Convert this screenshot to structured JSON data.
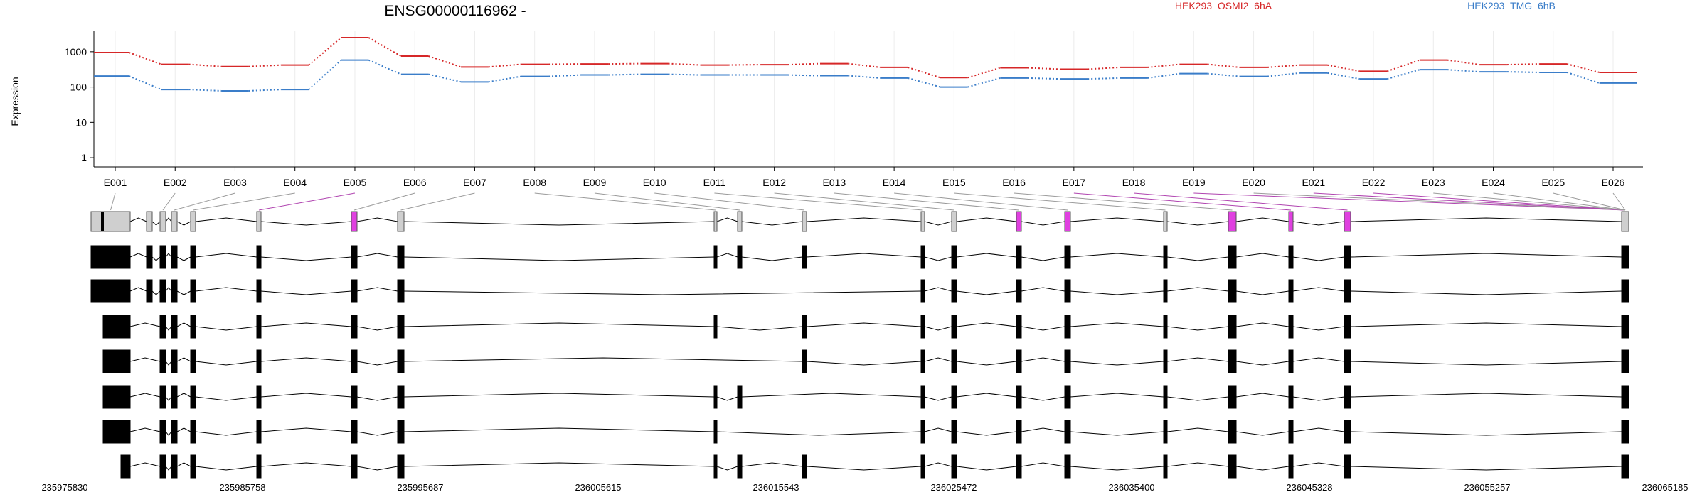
{
  "title": "ENSG00000116962 -",
  "legend": [
    {
      "label": "HEK293_OSMI2_6hA",
      "color": "#d62728"
    },
    {
      "label": "HEK293_TMG_6hB",
      "color": "#3a7dc9"
    }
  ],
  "chart_data": {
    "type": "line",
    "scale": "log10",
    "ylabel": "Expression",
    "yticks": [
      "1",
      "10",
      "100",
      "1000"
    ],
    "ylim": [
      0.55,
      3800
    ],
    "categories": [
      "E001",
      "E002",
      "E003",
      "E004",
      "E005",
      "E006",
      "E007",
      "E008",
      "E009",
      "E010",
      "E011",
      "E012",
      "E013",
      "E014",
      "E015",
      "E016",
      "E017",
      "E018",
      "E019",
      "E020",
      "E021",
      "E022",
      "E023",
      "E024",
      "E025",
      "E026"
    ],
    "series": [
      {
        "name": "HEK293_OSMI2_6hA",
        "color": "#d62728",
        "values": [
          950,
          440,
          380,
          420,
          2500,
          750,
          370,
          440,
          450,
          460,
          420,
          430,
          460,
          360,
          185,
          350,
          320,
          360,
          440,
          360,
          420,
          280,
          580,
          430,
          450,
          260
        ]
      },
      {
        "name": "HEK293_TMG_6hB",
        "color": "#3a7dc9",
        "values": [
          205,
          85,
          78,
          85,
          580,
          230,
          140,
          200,
          220,
          230,
          220,
          220,
          210,
          180,
          100,
          180,
          170,
          180,
          240,
          200,
          250,
          170,
          310,
          270,
          260,
          130
        ]
      }
    ]
  },
  "gene_model": {
    "genomic_ticks": [
      "235975830",
      "235985758",
      "235995687",
      "236005615",
      "236015543",
      "236025472",
      "236035400",
      "236045328",
      "236055257",
      "236065185"
    ],
    "highlight_color": "#e040e0",
    "highlighted_exons": [
      "E005",
      "E017",
      "E018",
      "E019",
      "E021",
      "E022"
    ],
    "transcript_count": 8
  }
}
